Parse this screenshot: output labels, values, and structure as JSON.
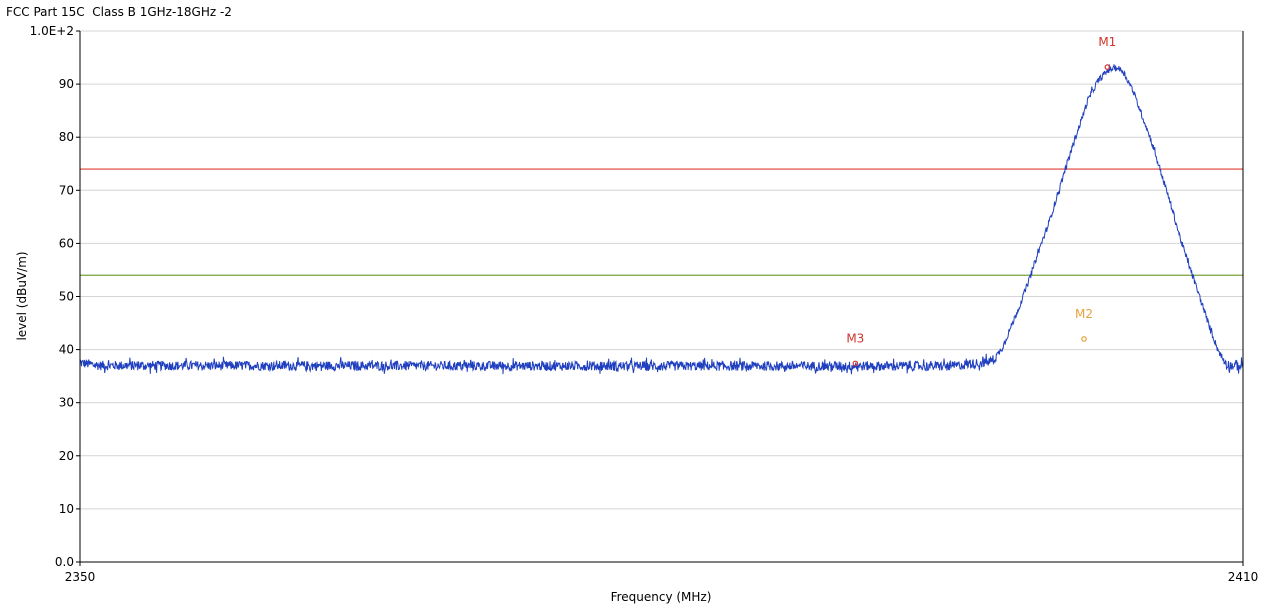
{
  "chart_data": {
    "type": "line",
    "title": "FCC Part 15C  Class B 1GHz-18GHz -2",
    "xlabel": "Frequency (MHz)",
    "ylabel": "level (dBuV/m)",
    "xlim": [
      2350,
      2410
    ],
    "ylim": [
      0,
      100
    ],
    "x_tick_labels": [
      {
        "value": 2350,
        "label": "2350"
      },
      {
        "value": 2410,
        "label": "2410"
      }
    ],
    "y_tick_labels": [
      {
        "value": 0,
        "label": "0.0"
      },
      {
        "value": 10,
        "label": "10"
      },
      {
        "value": 20,
        "label": "20"
      },
      {
        "value": 30,
        "label": "30"
      },
      {
        "value": 40,
        "label": "40"
      },
      {
        "value": 50,
        "label": "50"
      },
      {
        "value": 60,
        "label": "60"
      },
      {
        "value": 70,
        "label": "70"
      },
      {
        "value": 80,
        "label": "80"
      },
      {
        "value": 90,
        "label": "90"
      },
      {
        "value": 100,
        "label": "1.0E+2"
      }
    ],
    "grid": "horizontal",
    "limit_lines": [
      {
        "value": 74,
        "color": "#e03c31"
      },
      {
        "value": 54,
        "color": "#7aa33a"
      }
    ],
    "series": [
      {
        "color": "#1f3fbf",
        "baseline": 36.9,
        "profile": [
          [
            2350.0,
            37.5
          ],
          [
            2351.0,
            37.0
          ],
          [
            2380.0,
            36.9
          ],
          [
            2395.0,
            36.9
          ],
          [
            2396.8,
            37.6
          ],
          [
            2397.2,
            38.3
          ],
          [
            2397.6,
            40.5
          ],
          [
            2398.0,
            44.0
          ],
          [
            2398.5,
            48.5
          ],
          [
            2399.0,
            53.5
          ],
          [
            2399.5,
            59.0
          ],
          [
            2400.0,
            64.0
          ],
          [
            2400.5,
            70.0
          ],
          [
            2401.0,
            76.0
          ],
          [
            2401.5,
            81.5
          ],
          [
            2402.0,
            87.0
          ],
          [
            2402.5,
            90.5
          ],
          [
            2403.0,
            92.5
          ],
          [
            2403.4,
            93.2
          ],
          [
            2403.8,
            92.5
          ],
          [
            2404.3,
            89.0
          ],
          [
            2404.8,
            84.0
          ],
          [
            2405.3,
            79.0
          ],
          [
            2405.8,
            73.0
          ],
          [
            2406.3,
            67.0
          ],
          [
            2406.8,
            60.5
          ],
          [
            2407.3,
            55.0
          ],
          [
            2407.8,
            49.5
          ],
          [
            2408.3,
            44.0
          ],
          [
            2408.7,
            40.0
          ],
          [
            2409.0,
            38.0
          ],
          [
            2409.3,
            37.0
          ],
          [
            2410.0,
            36.9
          ]
        ]
      }
    ],
    "markers": [
      {
        "label": "M1",
        "x": 2403.0,
        "y": 93.2,
        "color": "#d0342c"
      },
      {
        "label": "M2",
        "x": 2401.8,
        "y": 42.0,
        "color": "#e6a23c"
      },
      {
        "label": "M3",
        "x": 2390.0,
        "y": 37.4,
        "color": "#d0342c"
      }
    ]
  }
}
